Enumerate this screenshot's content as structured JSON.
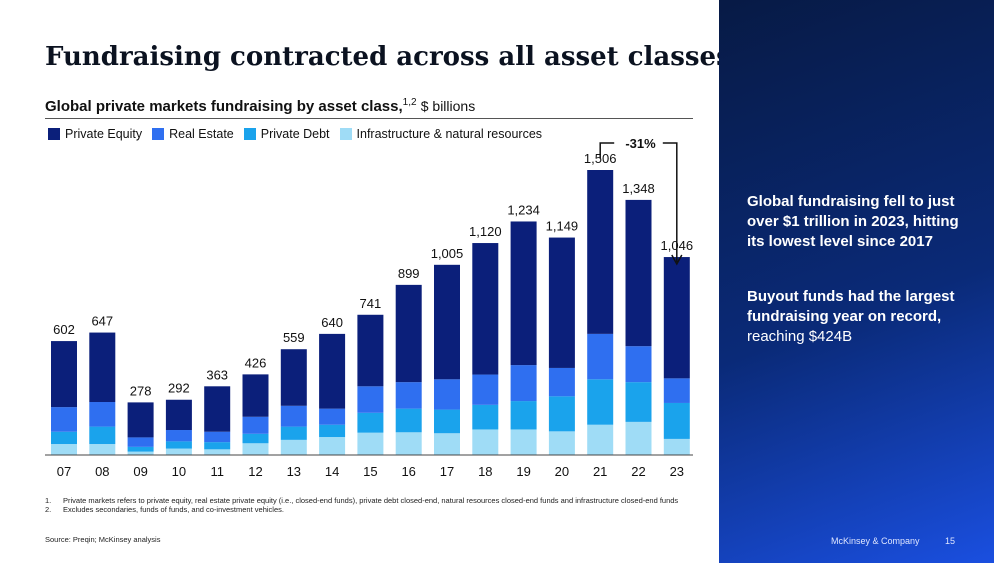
{
  "slide": {
    "title": "Fundraising contracted across all asset classes…",
    "subtitle": "Global private markets fundraising by asset class,",
    "subtitle_sup": "1,2",
    "subtitle_unit": "$ billions",
    "footnotes": [
      {
        "num": "1.",
        "text": "Private markets refers to private equity, real estate private equity (i.e., closed-end funds), private debt closed-end, natural resources closed-end funds and infrastructure closed-end funds"
      },
      {
        "num": "2.",
        "text": "Excludes secondaries, funds of funds, and co-investment vehicles."
      }
    ],
    "source": "Source: Preqin; McKinsey analysis",
    "brand": "McKinsey & Company",
    "page_number": "15"
  },
  "sidebar": {
    "takeaway1": "Global fundraising fell to just over $1 trillion in 2023, hitting its lowest level since 2017",
    "takeaway2_bold": "Buyout funds had the largest fundraising year on record,",
    "takeaway2_rest": " reaching $424B"
  },
  "chart_data": {
    "type": "bar",
    "stacked": true,
    "categories": [
      "07",
      "08",
      "09",
      "10",
      "11",
      "12",
      "13",
      "14",
      "15",
      "16",
      "17",
      "18",
      "19",
      "20",
      "21",
      "22",
      "23"
    ],
    "totals": [
      602,
      647,
      278,
      292,
      363,
      426,
      559,
      640,
      741,
      899,
      1005,
      1120,
      1234,
      1149,
      1506,
      1348,
      1046
    ],
    "series": [
      {
        "name": "Infrastructure & natural resources",
        "color": "#9fdcf6",
        "values": [
          58,
          58,
          18,
          34,
          30,
          62,
          80,
          95,
          118,
          120,
          115,
          135,
          135,
          125,
          160,
          175,
          85
        ]
      },
      {
        "name": "Private Debt",
        "color": "#1aa3ec",
        "values": [
          65,
          92,
          25,
          38,
          38,
          50,
          70,
          65,
          105,
          125,
          125,
          130,
          150,
          185,
          240,
          210,
          190
        ]
      },
      {
        "name": "Real Estate",
        "color": "#2f6ff0",
        "values": [
          130,
          130,
          50,
          60,
          55,
          90,
          110,
          85,
          140,
          140,
          160,
          160,
          190,
          150,
          240,
          190,
          130
        ]
      },
      {
        "name": "Private Equity",
        "color": "#0b1f7a",
        "values": [
          349,
          367,
          185,
          160,
          240,
          224,
          299,
          395,
          378,
          514,
          605,
          695,
          759,
          689,
          866,
          773,
          641
        ]
      }
    ],
    "legend_order": [
      "Private Equity",
      "Real Estate",
      "Private Debt",
      "Infrastructure & natural resources"
    ],
    "annotation": {
      "text": "-31%",
      "from": "21",
      "to": "23"
    },
    "ylim": [
      0,
      1650
    ],
    "legend_position": "top-left",
    "grid": false
  }
}
